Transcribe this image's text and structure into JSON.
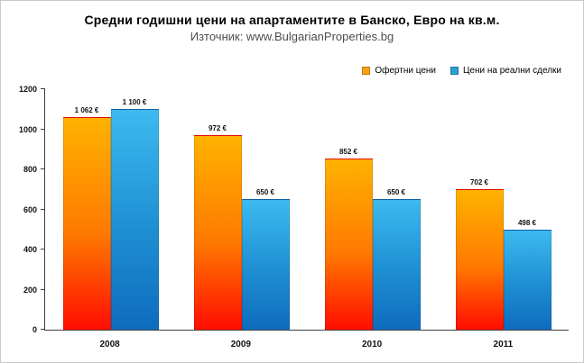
{
  "page": {
    "title": "Средни годишни цени на апартаментите в Банско, Евро на кв.м.",
    "subtitle": "Източник: www.BulgarianProperties.bg"
  },
  "chart_data": {
    "type": "bar",
    "title": "Средни годишни цени на апартаментите в Банско, Евро на кв.м.",
    "subtitle": "Източник: www.BulgarianProperties.bg",
    "categories": [
      "2008",
      "2009",
      "2010",
      "2011"
    ],
    "series": [
      {
        "name": "Офертни цени",
        "values": [
          1062,
          972,
          852,
          702
        ],
        "labels": [
          "1 062 €",
          "972 €",
          "852 €",
          "702 €"
        ],
        "legend_color": "#FFA013",
        "gradient_top": "#FFB200",
        "gradient_mid": "#FF7900",
        "gradient_bottom": "#FF0D00"
      },
      {
        "name": "Цени на реални сделки",
        "values": [
          1100,
          650,
          650,
          498
        ],
        "labels": [
          "1 100 €",
          "650 €",
          "650 €",
          "498 €"
        ],
        "legend_color": "#2E9FD4",
        "gradient_top": "#3DBAEF",
        "gradient_mid": "#1E8ED2",
        "gradient_bottom": "#0E6CBE"
      }
    ],
    "xlabel": "",
    "ylabel": "",
    "ylim": [
      0,
      1200
    ],
    "yticks": [
      0,
      200,
      400,
      600,
      800,
      1000,
      1200
    ],
    "grid": false,
    "legend_position": "top-right"
  }
}
